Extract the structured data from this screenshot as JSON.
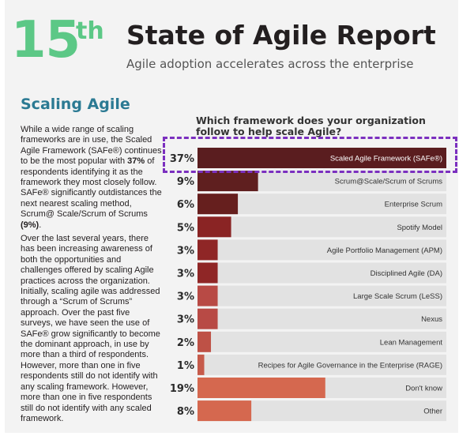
{
  "header": {
    "edition_number": "15",
    "edition_suffix": "th",
    "title": "State of Agile Report",
    "subtitle": "Agile adoption accelerates across the enterprise"
  },
  "section": {
    "title": "Scaling Agile",
    "para1": [
      {
        "text": "While a wide range of scaling frameworks are in use, the Scaled Agile Framework (SAFe®) continues to be the most popular with ",
        "bold": false
      },
      {
        "text": "37%",
        "bold": true
      },
      {
        "text": " of respondents identifying it as the framework they most closely follow. SAFe® significantly outdistances the next nearest scaling method, Scrum@ Scale/Scrum of Scrums ",
        "bold": false
      },
      {
        "text": "(9%)",
        "bold": true
      },
      {
        "text": ".",
        "bold": false
      }
    ],
    "para2": "Over the last several years, there has been increasing awareness of both the opportunities and challenges offered by scaling Agile practices across the organization. Initially, scaling agile was addressed through a “Scrum of Scrums” approach. Over the past five surveys, we have seen the use of SAFe® grow significantly to become the dominant approach, in use by more than a third of respondents. However, more than one in five respondents still do not identify with any scaling framework. However, more than one in five respondents still do not identify with any scaled framework."
  },
  "chart_data": {
    "type": "bar",
    "orientation": "horizontal",
    "title": "Which framework does your organization follow to help scale Agile?",
    "categories": [
      "Scaled Agile Framework (SAFe®)",
      "Scrum@Scale/Scrum of Scrums",
      "Enterprise Scrum",
      "Spotify Model",
      "Agile Portfolio Management (APM)",
      "Disciplined Agile (DA)",
      "Large Scale Scrum (LeSS)",
      "Nexus",
      "Lean Management",
      "Recipes for Agile Governance in the Enterprise (RAGE)",
      "Don't know",
      "Other"
    ],
    "values": [
      37,
      9,
      6,
      5,
      3,
      3,
      3,
      3,
      2,
      1,
      19,
      8
    ],
    "value_labels": [
      "37%",
      "9%",
      "6%",
      "5%",
      "3%",
      "3%",
      "3%",
      "3%",
      "2%",
      "1%",
      "19%",
      "8%"
    ],
    "xlim": [
      0,
      37
    ],
    "grid": false,
    "highlighted_category": "Scaled Agile Framework (SAFe®)",
    "colors": {
      "bar_track": "#e2e2e2",
      "bar_fills": [
        "#5a1d1f",
        "#5f1f1f",
        "#661f1e",
        "#8a2424",
        "#8f2626",
        "#8f2626",
        "#b84a45",
        "#b84a45",
        "#be5146",
        "#c65b4b",
        "#d5684f",
        "#d5684f"
      ],
      "highlight_border": "#7b2fbf"
    }
  }
}
